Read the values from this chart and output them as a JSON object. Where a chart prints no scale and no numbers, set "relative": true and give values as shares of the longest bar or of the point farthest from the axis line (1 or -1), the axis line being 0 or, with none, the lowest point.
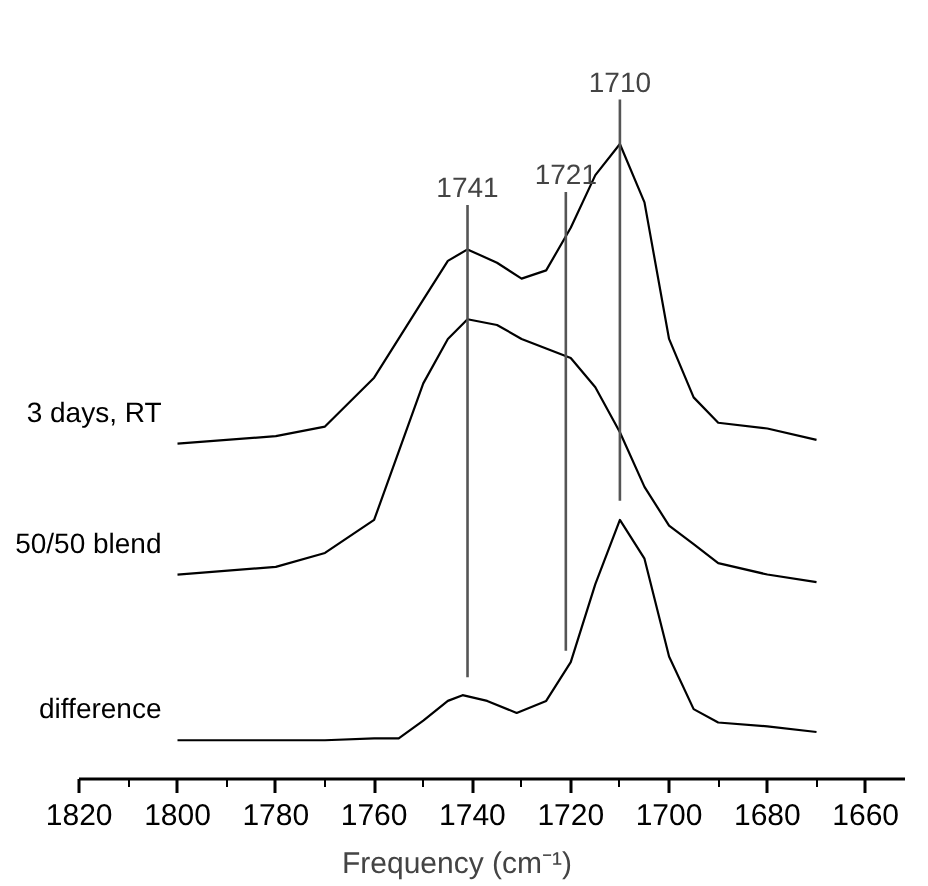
{
  "chart_data": {
    "type": "line",
    "relative": true,
    "xlabel": "Frequency (cm⁻¹)",
    "xlim": [
      1820,
      1652
    ],
    "xticks": [
      1820,
      {
        "value": 1810,
        "label": null
      },
      1800,
      {
        "value": 1790,
        "label": null
      },
      1780,
      {
        "value": 1770,
        "label": null
      },
      1760,
      {
        "value": 1750,
        "label": null
      },
      1740,
      {
        "value": 1730,
        "label": null
      },
      1720,
      {
        "value": 1710,
        "label": null
      },
      1700,
      {
        "value": 1690,
        "label": null
      },
      1680,
      {
        "value": 1670,
        "label": null
      },
      1660
    ],
    "tick_labels": "x",
    "grid": false,
    "legend": false,
    "marker": "none",
    "line_style": "solid",
    "x": [
      1800,
      1780,
      1770,
      1760,
      1750,
      1745,
      1741,
      1735,
      1730,
      1725,
      1720,
      1715,
      1710,
      1705,
      1700,
      1695,
      1690,
      1680,
      1670
    ],
    "series": [
      {
        "name": "3 days, RT",
        "color": "#000000",
        "values": [
          0.528,
          0.54,
          0.555,
          0.632,
          0.755,
          0.816,
          0.834,
          0.813,
          0.788,
          0.801,
          0.868,
          0.951,
          1.0,
          0.908,
          0.693,
          0.601,
          0.561,
          0.552,
          0.534
        ]
      },
      {
        "name": "50/50 blend",
        "color": "#000000",
        "values": [
          0.322,
          0.334,
          0.356,
          0.408,
          0.623,
          0.693,
          0.724,
          0.715,
          0.693,
          0.678,
          0.663,
          0.617,
          0.546,
          0.46,
          0.399,
          0.37,
          0.34,
          0.322,
          0.31
        ]
      },
      {
        "name": "difference",
        "color": "#000000",
        "x": [
          1800,
          1770,
          1760,
          1755,
          1750,
          1745,
          1742,
          1737,
          1731,
          1725,
          1720,
          1715,
          1710,
          1705,
          1700,
          1695,
          1690,
          1680,
          1670
        ],
        "values": [
          0.061,
          0.061,
          0.064,
          0.064,
          0.092,
          0.123,
          0.132,
          0.123,
          0.104,
          0.123,
          0.184,
          0.307,
          0.408,
          0.347,
          0.193,
          0.11,
          0.089,
          0.083,
          0.074
        ]
      }
    ],
    "ref_lines": [
      {
        "axis": "x",
        "value": 1741,
        "label": "1741",
        "color": "#555555"
      },
      {
        "axis": "x",
        "value": 1721,
        "label": "1721",
        "color": "#555555"
      },
      {
        "axis": "x",
        "value": 1710,
        "label": "1710",
        "color": "#555555"
      }
    ]
  }
}
